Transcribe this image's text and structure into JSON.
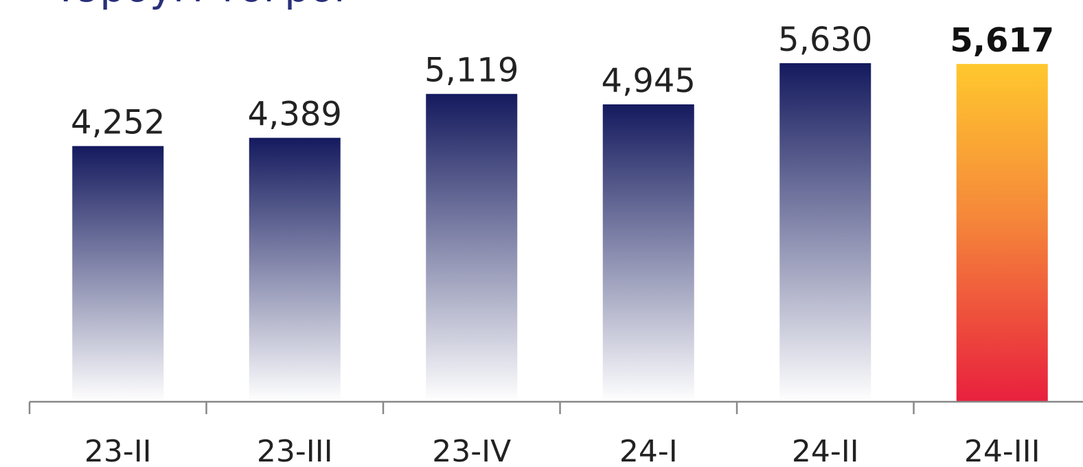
{
  "title": "Тэрбум төгрөг",
  "chart_data": {
    "type": "bar",
    "title": "Тэрбум төгрөг",
    "categories": [
      "23-II",
      "23-III",
      "23-IV",
      "24-I",
      "24-II",
      "24-III"
    ],
    "values": [
      4252,
      4389,
      5119,
      4945,
      5630,
      5617
    ],
    "value_labels": [
      "4,252",
      "4,389",
      "5,119",
      "4,945",
      "5,630",
      "5,617"
    ],
    "highlight_index": 5,
    "xlabel": "",
    "ylabel": "",
    "ylim": [
      0,
      5630
    ],
    "grid": false,
    "legend": "none",
    "colors": {
      "bar_top": "#141a5e",
      "bar_bottom": "#ffffff",
      "highlight_top": "#ffc82e",
      "highlight_mid": "#f5883a",
      "highlight_bottom": "#e8203e",
      "axis": "#888888"
    }
  }
}
